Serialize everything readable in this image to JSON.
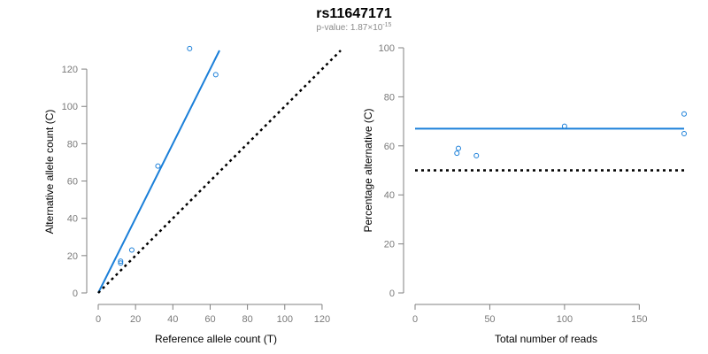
{
  "title": "rs11647171",
  "subtitle": "p-value: 1.87×10",
  "subtitle_exp": "-15",
  "colors": {
    "points": "#1a7fd9",
    "fit": "#1a7fd9",
    "reference": "#000000",
    "axis": "#808080"
  },
  "chart_data": [
    {
      "type": "scatter",
      "title": "",
      "xlabel": "Reference allele count (T)",
      "ylabel": "Alternative allele count (C)",
      "xlim": [
        0,
        130
      ],
      "ylim": [
        0,
        130
      ],
      "xticks": [
        0,
        20,
        40,
        60,
        80,
        100,
        120
      ],
      "yticks": [
        0,
        20,
        40,
        60,
        80,
        100,
        120
      ],
      "points": [
        {
          "x": 12,
          "y": 16
        },
        {
          "x": 12,
          "y": 17
        },
        {
          "x": 18,
          "y": 23
        },
        {
          "x": 32,
          "y": 68
        },
        {
          "x": 49,
          "y": 131
        },
        {
          "x": 63,
          "y": 117
        }
      ],
      "lines": [
        {
          "style": "solid",
          "x": [
            0,
            65
          ],
          "y": [
            0,
            130
          ]
        },
        {
          "style": "dotted",
          "x": [
            0,
            130
          ],
          "y": [
            0,
            130
          ]
        }
      ],
      "grid": false
    },
    {
      "type": "scatter",
      "title": "",
      "xlabel": "Total number of reads",
      "ylabel": "Percentage alternative (C)",
      "xlim": [
        0,
        180
      ],
      "ylim": [
        0,
        100
      ],
      "xticks": [
        0,
        50,
        100,
        150
      ],
      "yticks": [
        0,
        20,
        40,
        60,
        80,
        100
      ],
      "points": [
        {
          "x": 28,
          "y": 57
        },
        {
          "x": 29,
          "y": 59
        },
        {
          "x": 41,
          "y": 56
        },
        {
          "x": 100,
          "y": 68
        },
        {
          "x": 180,
          "y": 73
        },
        {
          "x": 180,
          "y": 65
        }
      ],
      "lines": [
        {
          "style": "solid",
          "x": [
            0,
            180
          ],
          "y": [
            67,
            67
          ]
        },
        {
          "style": "dotted",
          "x": [
            0,
            180
          ],
          "y": [
            50,
            50
          ]
        }
      ],
      "grid": false
    }
  ]
}
